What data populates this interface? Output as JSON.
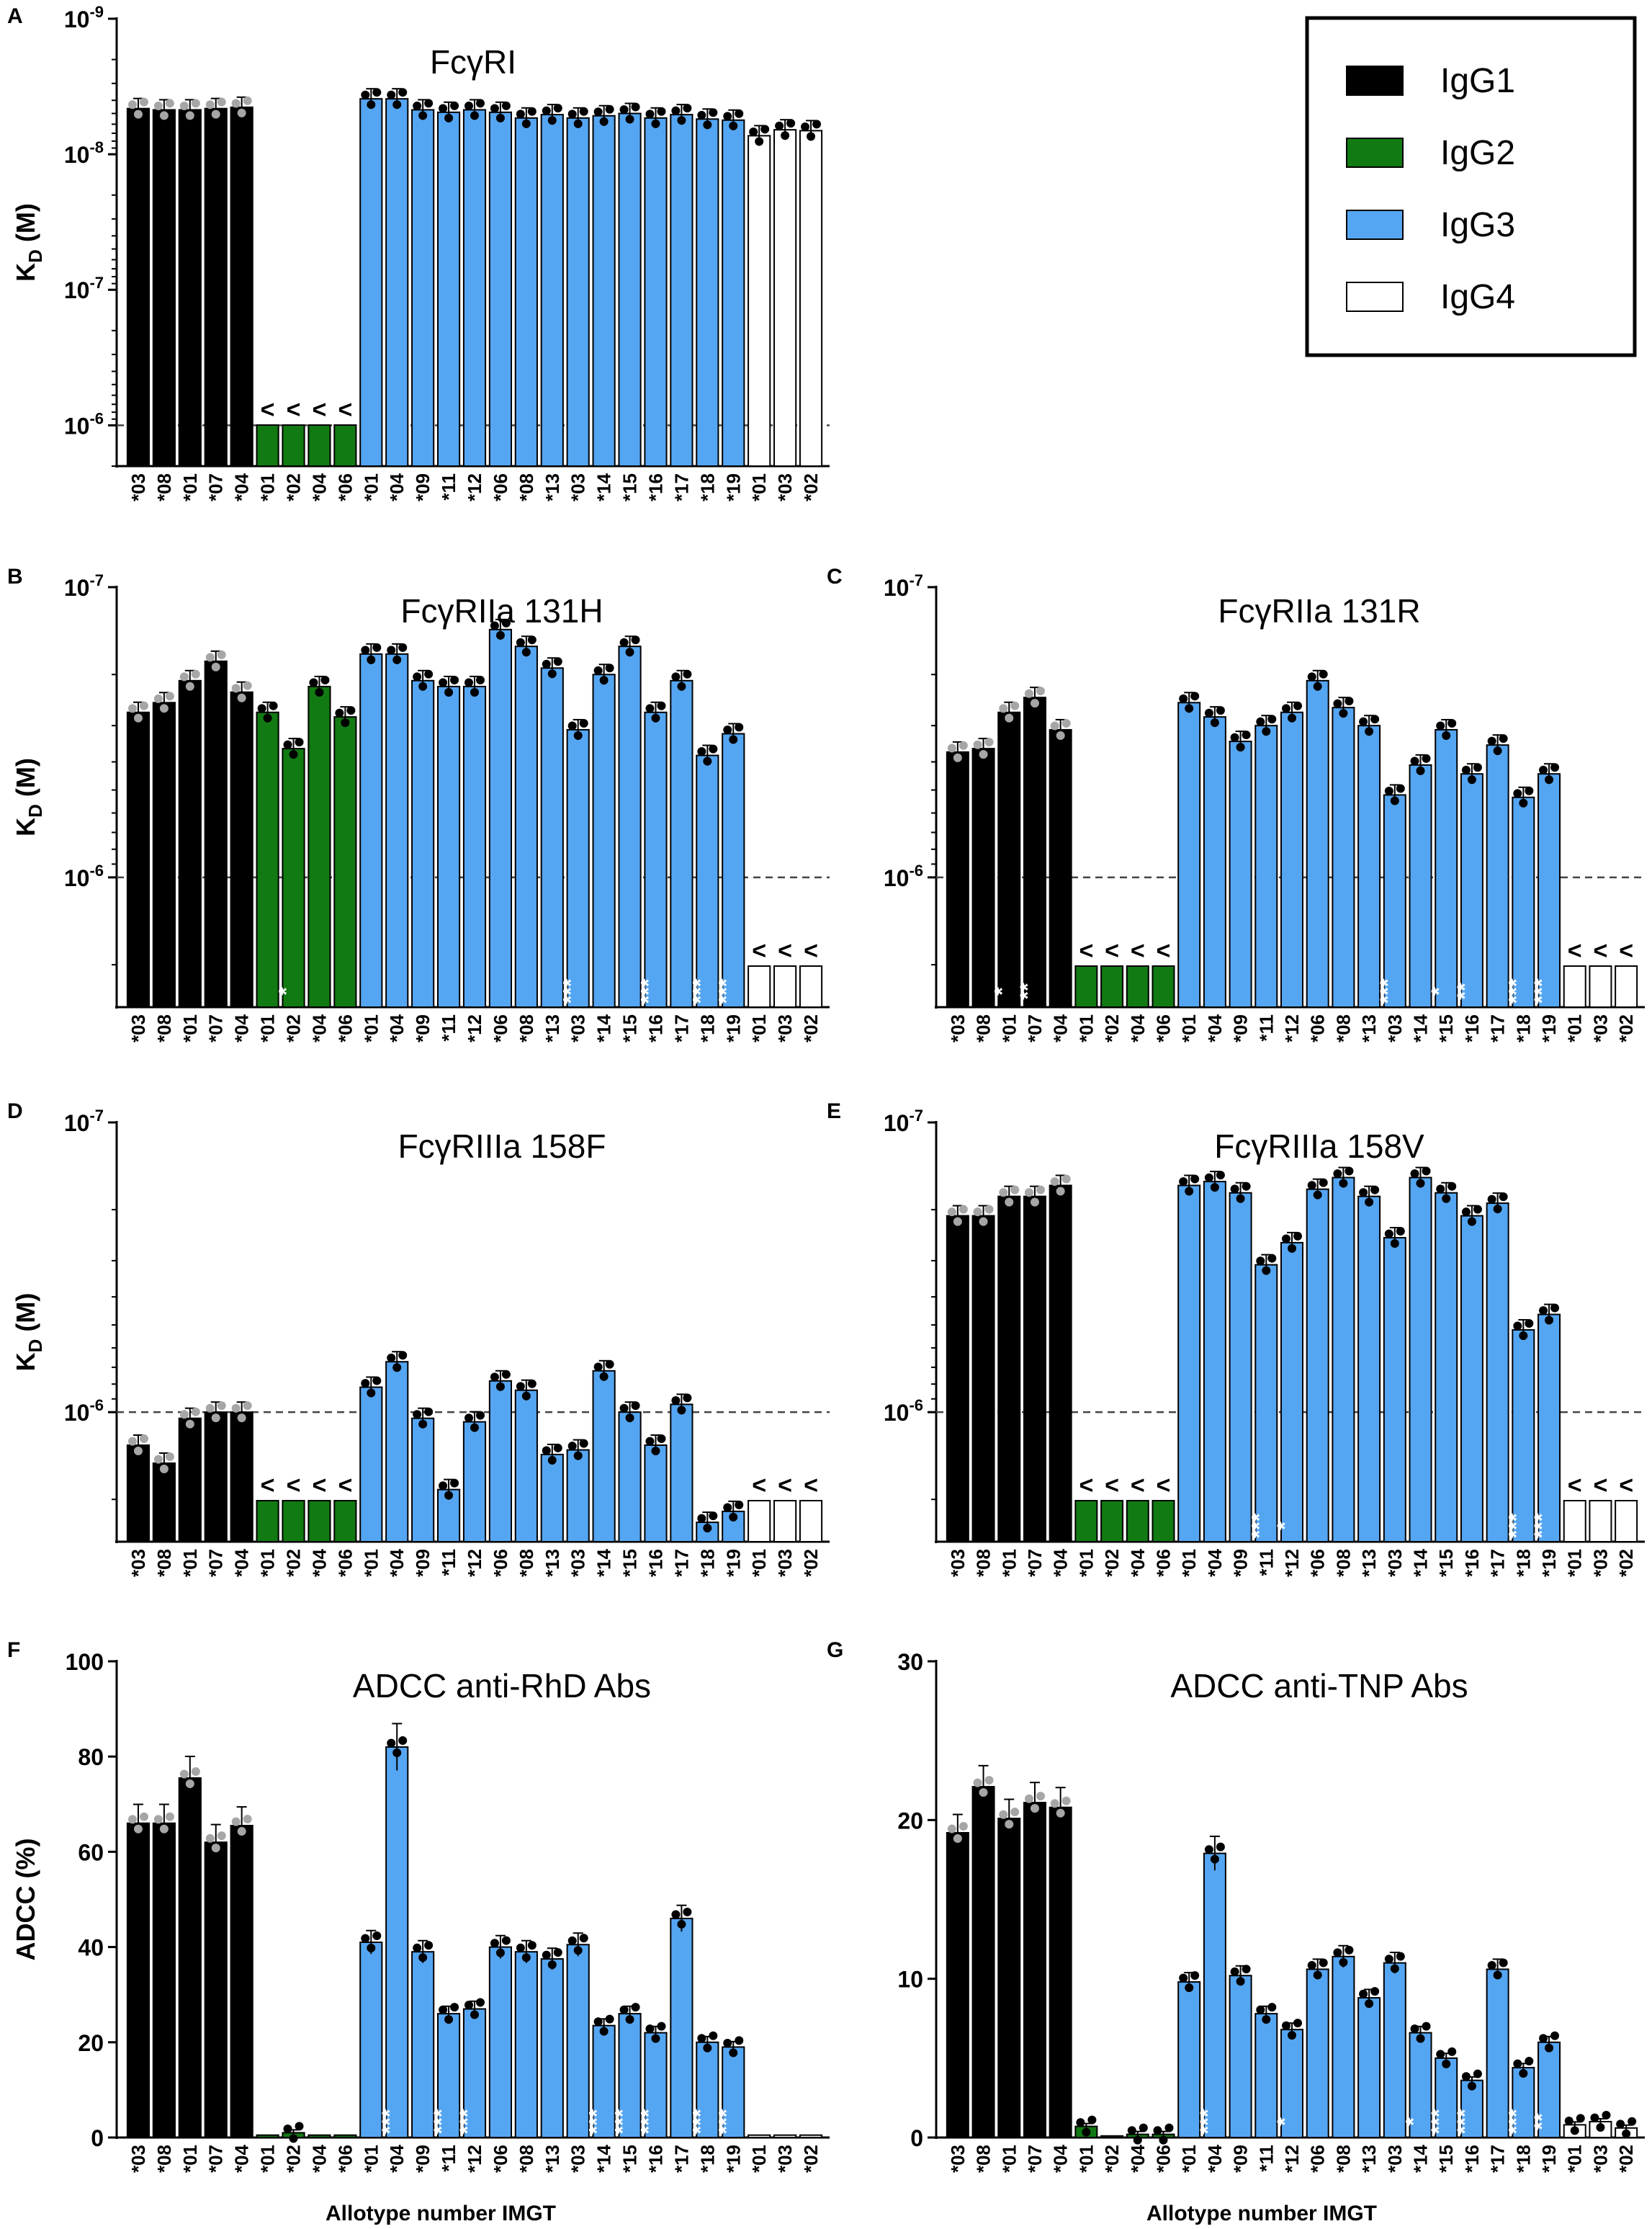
{
  "figure": {
    "xlabel": "Allotype number IMGT"
  },
  "colors": {
    "IgG1": "#000000",
    "IgG2": "#127a12",
    "IgG3": "#55a6f2",
    "IgG4": "#ffffff",
    "stroke": "#000000",
    "grey_point": "#a6a6a6",
    "dashed": "#444444"
  },
  "legend": [
    {
      "name": "IgG1",
      "color": "#000000"
    },
    {
      "name": "IgG2",
      "color": "#127a12"
    },
    {
      "name": "IgG3",
      "color": "#55a6f2"
    },
    {
      "name": "IgG4",
      "color": "#ffffff"
    }
  ],
  "categories": [
    "*03",
    "*08",
    "*01",
    "*07",
    "*04",
    "*01",
    "*02",
    "*04",
    "*06",
    "*01",
    "*04",
    "*09",
    "*11",
    "*12",
    "*06",
    "*08",
    "*13",
    "*03",
    "*14",
    "*15",
    "*16",
    "*17",
    "*18",
    "*19",
    "*01",
    "*03",
    "*02"
  ],
  "categories_E": [
    "*03",
    "*08",
    "*01",
    "*07",
    "*04",
    "*01",
    "*02",
    "*04",
    "*06",
    "*01",
    "*04",
    "*09",
    "*11",
    "*12",
    "*06",
    "*08",
    "*13",
    "*03",
    "*14",
    "*15",
    "*16",
    "*17",
    "*18",
    "*19",
    "*01",
    "*03",
    "*02"
  ],
  "subclass": [
    "IgG1",
    "IgG1",
    "IgG1",
    "IgG1",
    "IgG1",
    "IgG2",
    "IgG2",
    "IgG2",
    "IgG2",
    "IgG3",
    "IgG3",
    "IgG3",
    "IgG3",
    "IgG3",
    "IgG3",
    "IgG3",
    "IgG3",
    "IgG3",
    "IgG3",
    "IgG3",
    "IgG3",
    "IgG3",
    "IgG3",
    "IgG3",
    "IgG4",
    "IgG4",
    "IgG4"
  ],
  "chart_data": [
    {
      "panel": "A",
      "type": "bar",
      "title": "FcγRI",
      "ylabel": "K",
      "ylabel_sub": "D",
      "ylabel_tail": " (M)",
      "yscale": "log-inverted",
      "ylim": [
        2e-06,
        1e-09
      ],
      "ytick_labels": [
        {
          "value": 1e-09,
          "base": "10",
          "exp": "-9"
        },
        {
          "value": 1e-08,
          "base": "10",
          "exp": "-8"
        },
        {
          "value": 1e-07,
          "base": "10",
          "exp": "-7"
        },
        {
          "value": 1e-06,
          "base": "10",
          "exp": "-6"
        }
      ],
      "threshold": 1e-06,
      "values": [
        4.6e-09,
        4.7e-09,
        4.7e-09,
        4.6e-09,
        4.5e-09,
        null,
        null,
        null,
        null,
        3.9e-09,
        3.9e-09,
        4.7e-09,
        4.9e-09,
        4.7e-09,
        4.9e-09,
        5.4e-09,
        5.1e-09,
        5.4e-09,
        5.2e-09,
        5e-09,
        5.4e-09,
        5.1e-09,
        5.5e-09,
        5.6e-09,
        7.3e-09,
        6.6e-09,
        6.7e-09
      ],
      "marks": [
        "",
        "",
        "",
        "",
        "",
        "<",
        "<",
        "<",
        "<",
        "",
        "",
        "",
        "",
        "",
        "",
        "",
        "",
        "",
        "",
        "",
        "",
        "",
        "",
        "",
        "",
        "",
        ""
      ],
      "significance": [
        "",
        "",
        "",
        "",
        "",
        "",
        "",
        "",
        "",
        "",
        "",
        "",
        "",
        "",
        "",
        "",
        "",
        "",
        "",
        "",
        "",
        "",
        "",
        "",
        "",
        "",
        ""
      ]
    },
    {
      "panel": "B",
      "type": "bar",
      "title": "FcγRIIa 131H",
      "ylabel": "K",
      "ylabel_sub": "D",
      "ylabel_tail": " (M)",
      "yscale": "log-inverted",
      "ylim": [
        2.8e-06,
        1e-07
      ],
      "ytick_labels": [
        {
          "value": 1e-07,
          "base": "10",
          "exp": "-7"
        },
        {
          "value": 1e-06,
          "base": "10",
          "exp": "-6"
        }
      ],
      "threshold": 1e-06,
      "values": [
        2.7e-07,
        2.5e-07,
        2.1e-07,
        1.8e-07,
        2.3e-07,
        2.7e-07,
        3.6e-07,
        2.2e-07,
        2.8e-07,
        1.7e-07,
        1.7e-07,
        2.1e-07,
        2.2e-07,
        2.2e-07,
        1.4e-07,
        1.6e-07,
        1.9e-07,
        3.1e-07,
        2e-07,
        1.6e-07,
        2.7e-07,
        2.1e-07,
        3.8e-07,
        3.2e-07,
        null,
        null,
        null
      ],
      "marks": [
        "",
        "",
        "",
        "",
        "",
        "",
        "",
        "",
        "",
        "",
        "",
        "",
        "",
        "",
        "",
        "",
        "",
        "",
        "",
        "",
        "",
        "",
        "",
        "",
        "<",
        "<",
        "<"
      ],
      "significance": [
        "",
        "",
        "",
        "",
        "",
        "",
        "*",
        "",
        "",
        "",
        "",
        "",
        "",
        "",
        "",
        "",
        "",
        "***",
        "",
        "",
        "***",
        "",
        "***",
        "***",
        "",
        "",
        ""
      ]
    },
    {
      "panel": "C",
      "type": "bar",
      "title": "FcγRIIa 131R",
      "ylabel": "",
      "ylabel_sub": "",
      "ylabel_tail": "",
      "yscale": "log-inverted",
      "ylim": [
        2.8e-06,
        1e-07
      ],
      "ytick_labels": [
        {
          "value": 1e-07,
          "base": "10",
          "exp": "-7"
        },
        {
          "value": 1e-06,
          "base": "10",
          "exp": "-6"
        }
      ],
      "threshold": 1e-06,
      "values": [
        3.7e-07,
        3.6e-07,
        2.7e-07,
        2.4e-07,
        3.1e-07,
        null,
        null,
        null,
        null,
        2.5e-07,
        2.8e-07,
        3.4e-07,
        3e-07,
        2.7e-07,
        2.1e-07,
        2.6e-07,
        3e-07,
        5.2e-07,
        4.1e-07,
        3.1e-07,
        4.4e-07,
        3.5e-07,
        5.3e-07,
        4.4e-07,
        null,
        null,
        null
      ],
      "marks": [
        "",
        "",
        "",
        "",
        "",
        "<",
        "<",
        "<",
        "<",
        "",
        "",
        "",
        "",
        "",
        "",
        "",
        "",
        "",
        "",
        "",
        "",
        "",
        "",
        "",
        "<",
        "<",
        "<"
      ],
      "significance": [
        "",
        "",
        "*",
        "**",
        "",
        "",
        "",
        "",
        "",
        "",
        "",
        "",
        "",
        "",
        "",
        "",
        "",
        "***",
        "",
        "*",
        "**",
        "",
        "***",
        "***",
        "",
        "",
        ""
      ]
    },
    {
      "panel": "D",
      "type": "bar",
      "title": "FcγRIIIa 158F",
      "ylabel": "K",
      "ylabel_sub": "D",
      "ylabel_tail": " (M)",
      "yscale": "log-inverted",
      "ylim": [
        2.8e-06,
        1e-07
      ],
      "ytick_labels": [
        {
          "value": 1e-07,
          "base": "10",
          "exp": "-7"
        },
        {
          "value": 1e-06,
          "base": "10",
          "exp": "-6"
        }
      ],
      "threshold": 1e-06,
      "values": [
        1.3e-06,
        1.5e-06,
        1.05e-06,
        1e-06,
        1e-06,
        null,
        null,
        null,
        null,
        8.2e-07,
        6.7e-07,
        1.05e-06,
        1.85e-06,
        1.08e-06,
        7.8e-07,
        8.4e-07,
        1.4e-06,
        1.35e-06,
        7.2e-07,
        1e-06,
        1.3e-06,
        9.4e-07,
        2.4e-06,
        2.2e-06,
        null,
        null,
        null
      ],
      "marks": [
        "",
        "",
        "",
        "",
        "",
        "<",
        "<",
        "<",
        "<",
        "",
        "",
        "",
        "",
        "",
        "",
        "",
        "",
        "",
        "",
        "",
        "",
        "",
        "",
        "",
        "<",
        "<",
        "<"
      ],
      "significance": [
        "",
        "",
        "",
        "",
        "",
        "",
        "",
        "",
        "",
        "",
        "",
        "",
        "",
        "",
        "",
        "",
        "",
        "",
        "",
        "",
        "",
        "",
        "",
        "",
        "",
        "",
        ""
      ]
    },
    {
      "panel": "E",
      "type": "bar",
      "title": "FcγRIIIa 158V",
      "ylabel": "",
      "ylabel_sub": "",
      "ylabel_tail": "",
      "yscale": "log-inverted",
      "ylim": [
        2.8e-06,
        1e-07
      ],
      "ytick_labels": [
        {
          "value": 1e-07,
          "base": "10",
          "exp": "-7"
        },
        {
          "value": 1e-06,
          "base": "10",
          "exp": "-6"
        }
      ],
      "threshold": 1e-06,
      "values": [
        2.1e-07,
        2.1e-07,
        1.8e-07,
        1.8e-07,
        1.65e-07,
        null,
        null,
        null,
        null,
        1.65e-07,
        1.6e-07,
        1.75e-07,
        3.1e-07,
        2.6e-07,
        1.7e-07,
        1.55e-07,
        1.8e-07,
        2.5e-07,
        1.55e-07,
        1.75e-07,
        2.1e-07,
        1.9e-07,
        5.2e-07,
        4.6e-07,
        null,
        null,
        null
      ],
      "marks": [
        "",
        "",
        "",
        "",
        "",
        "<",
        "<",
        "<",
        "<",
        "",
        "",
        "",
        "",
        "",
        "",
        "",
        "",
        "",
        "",
        "",
        "",
        "",
        "",
        "",
        "<",
        "<",
        "<"
      ],
      "significance": [
        "",
        "",
        "",
        "",
        "",
        "",
        "",
        "",
        "",
        "",
        "",
        "",
        "***",
        "*",
        "",
        "",
        "",
        "",
        "",
        "",
        "",
        "",
        "***",
        "***",
        "",
        "",
        ""
      ]
    },
    {
      "panel": "F",
      "type": "bar",
      "title": "ADCC anti-RhD Abs",
      "ylabel": "ADCC (%)",
      "ylabel_sub": "",
      "ylabel_tail": "",
      "yscale": "linear",
      "ylim": [
        0,
        100
      ],
      "ytick_labels": [
        {
          "value": 0,
          "base": "0",
          "exp": ""
        },
        {
          "value": 20,
          "base": "20",
          "exp": ""
        },
        {
          "value": 40,
          "base": "40",
          "exp": ""
        },
        {
          "value": 60,
          "base": "60",
          "exp": ""
        },
        {
          "value": 80,
          "base": "80",
          "exp": ""
        },
        {
          "value": 100,
          "base": "100",
          "exp": ""
        }
      ],
      "threshold": null,
      "values": [
        66,
        66,
        75.5,
        62,
        65.5,
        0.5,
        1,
        0.5,
        0.5,
        41,
        82,
        39,
        26,
        27,
        40,
        39,
        37.5,
        40.5,
        23.5,
        26,
        22,
        46,
        20,
        19,
        0.5,
        0.5,
        0.5
      ],
      "marks": [
        "",
        "",
        "",
        "",
        "",
        "",
        "",
        "",
        "",
        "",
        "",
        "",
        "",
        "",
        "",
        "",
        "",
        "",
        "",
        "",
        "",
        "",
        "",
        "",
        "",
        "",
        ""
      ],
      "significance": [
        "",
        "",
        "",
        "",
        "",
        "",
        "",
        "",
        "",
        "",
        "***",
        "",
        "***",
        "***",
        "",
        "",
        "",
        "",
        "***",
        "***",
        "***",
        "",
        "***",
        "***",
        "",
        "",
        ""
      ]
    },
    {
      "panel": "G",
      "type": "bar",
      "title": "ADCC anti-TNP Abs",
      "ylabel": "",
      "ylabel_sub": "",
      "ylabel_tail": "",
      "yscale": "linear",
      "ylim": [
        0,
        30
      ],
      "ytick_labels": [
        {
          "value": 0,
          "base": "0",
          "exp": ""
        },
        {
          "value": 10,
          "base": "10",
          "exp": ""
        },
        {
          "value": 20,
          "base": "20",
          "exp": ""
        },
        {
          "value": 30,
          "base": "30",
          "exp": ""
        }
      ],
      "threshold": null,
      "values": [
        19.2,
        22.1,
        20.1,
        21.1,
        20.8,
        0.7,
        0.1,
        0.2,
        0.2,
        9.8,
        17.9,
        10.2,
        7.8,
        6.8,
        10.6,
        11.4,
        8.8,
        11.0,
        6.6,
        5.0,
        3.6,
        10.6,
        4.4,
        6.0,
        0.8,
        1.0,
        0.6
      ],
      "marks": [
        "",
        "",
        "",
        "",
        "",
        "",
        "",
        "",
        "",
        "",
        "",
        "",
        "",
        "",
        "",
        "",
        "",
        "",
        "",
        "",
        "",
        "",
        "",
        "",
        "",
        "",
        ""
      ],
      "significance": [
        "",
        "",
        "",
        "",
        "",
        "",
        "",
        "",
        "",
        "",
        "***",
        "",
        "",
        "*",
        "",
        "",
        "",
        "",
        "*",
        "***",
        "***",
        "",
        "***",
        "**",
        "",
        "",
        ""
      ]
    }
  ]
}
